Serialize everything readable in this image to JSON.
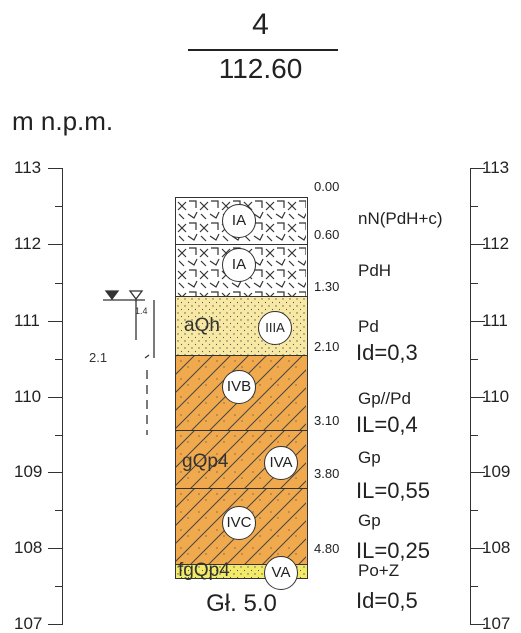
{
  "header": {
    "borehole_no": "4",
    "elevation": "112.60"
  },
  "axis": {
    "unit_label": "m n.p.m.",
    "ticks": [
      "113",
      "112",
      "111",
      "110",
      "109",
      "108",
      "107"
    ]
  },
  "groundwater": {
    "observed_depth": "2.1",
    "stabilized_depth": "1.4"
  },
  "layers": [
    {
      "top_depth": "0.00",
      "bottom_depth": "0.60",
      "symbol": "IA",
      "soil": "nN(PdH+c)",
      "param": "",
      "strat": "",
      "fill": "#ffffff",
      "hatch": "cross"
    },
    {
      "top_depth": "",
      "bottom_depth": "1.30",
      "symbol": "IA",
      "soil": "PdH",
      "param": "",
      "strat": "",
      "fill": "#ffffff",
      "hatch": "cross"
    },
    {
      "top_depth": "",
      "bottom_depth": "2.10",
      "symbol": "IIIA",
      "soil": "Pd",
      "param": "Id=0,3",
      "strat": "aQh",
      "fill": "#f7e9a3",
      "hatch": "dots"
    },
    {
      "top_depth": "",
      "bottom_depth": "3.10",
      "symbol": "IVB",
      "soil": "Gp//Pd",
      "param": "IL=0,4",
      "strat": "",
      "fill": "#f0a94c",
      "hatch": "diag"
    },
    {
      "top_depth": "",
      "bottom_depth": "3.80",
      "symbol": "IVA",
      "soil": "Gp",
      "param": "IL=0,55",
      "strat": "gQp4",
      "fill": "#f0a94c",
      "hatch": "diag"
    },
    {
      "top_depth": "",
      "bottom_depth": "4.80",
      "symbol": "IVC",
      "soil": "Gp",
      "param": "IL=0,25",
      "strat": "",
      "fill": "#f0a94c",
      "hatch": "diag"
    },
    {
      "top_depth": "",
      "bottom_depth": "",
      "symbol": "VA",
      "soil": "Po+Z",
      "param": "Id=0,5",
      "strat": "fgQp4",
      "fill": "#f3ea6a",
      "hatch": "dots"
    }
  ],
  "final_depth": "Gł. 5.0"
}
